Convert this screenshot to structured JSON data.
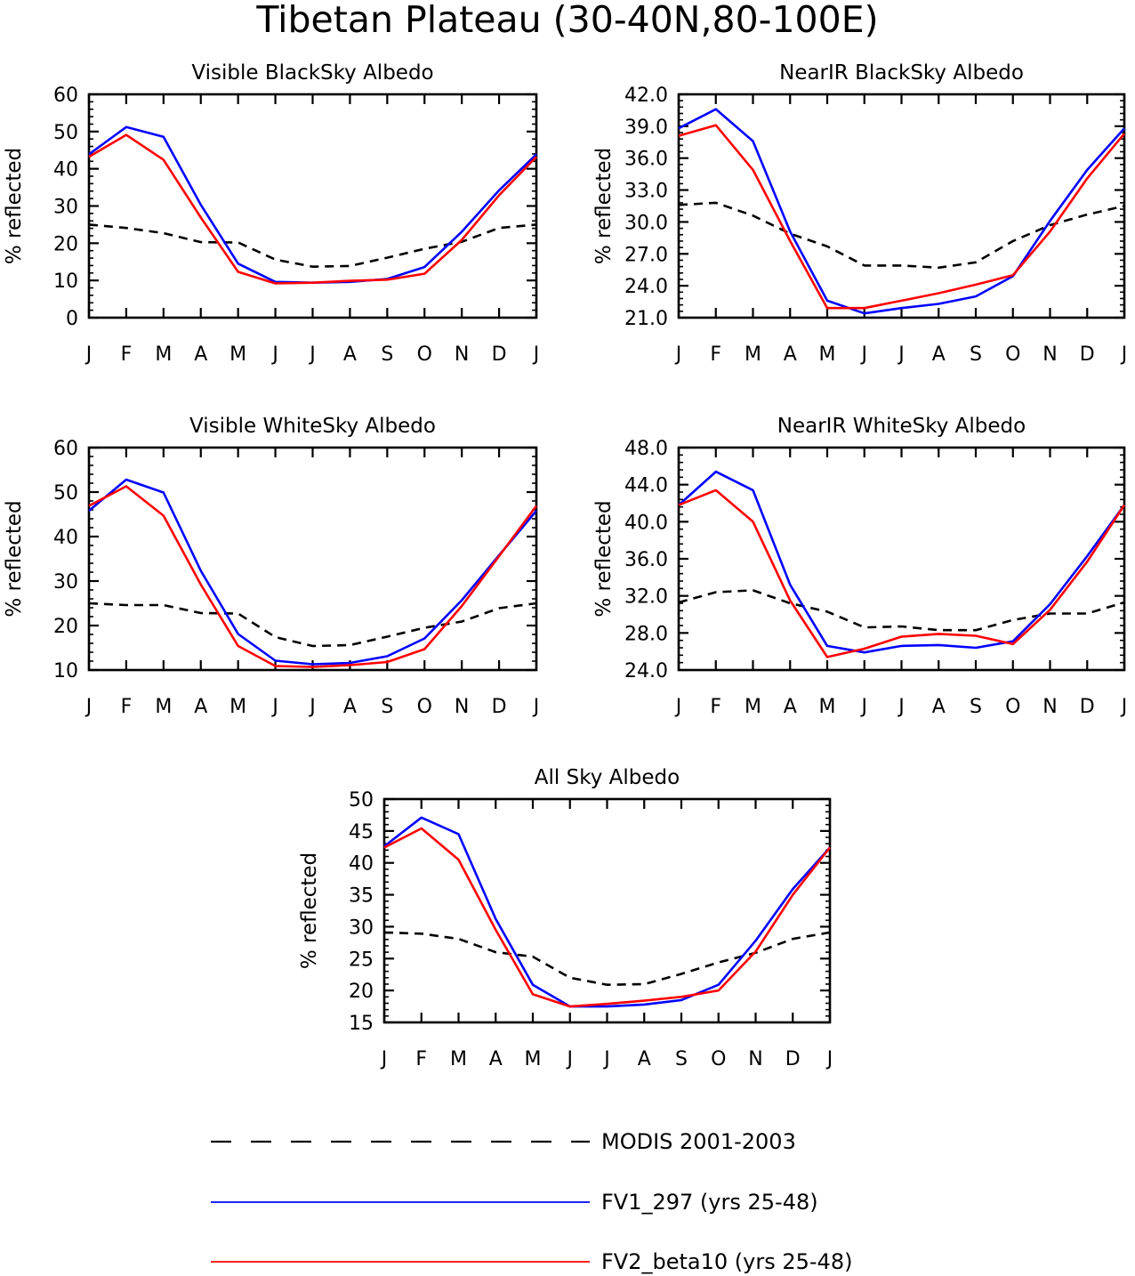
{
  "figure_title": "Tibetan Plateau (30-40N,80-100E)",
  "months": [
    "J",
    "F",
    "M",
    "A",
    "M",
    "J",
    "J",
    "A",
    "S",
    "O",
    "N",
    "D",
    "J"
  ],
  "series_colors": {
    "MODIS": "#000000",
    "FV1": "#0000ff",
    "FV2": "#ff0000"
  },
  "legend": [
    {
      "name": "MODIS 2001-2003",
      "color": "#000000",
      "style": "dashed"
    },
    {
      "name": "FV1_297 (yrs 25-48)",
      "color": "#0000ff",
      "style": "solid"
    },
    {
      "name": "FV2_beta10 (yrs 25-48)",
      "color": "#ff0000",
      "style": "solid"
    }
  ],
  "chart_data": [
    {
      "type": "line",
      "title": "Visible BlackSky Albedo",
      "ylabel": "% reflected",
      "categories": [
        "J",
        "F",
        "M",
        "A",
        "M",
        "J",
        "J",
        "A",
        "S",
        "O",
        "N",
        "D",
        "J"
      ],
      "ylim": [
        0,
        60
      ],
      "yticks": [
        "0",
        "10",
        "20",
        "30",
        "40",
        "50",
        "60"
      ],
      "series": [
        {
          "name": "MODIS 2001-2003",
          "values": [
            25,
            24.1,
            22.7,
            20.3,
            20.2,
            15.6,
            13.7,
            13.9,
            16.1,
            18.5,
            20.4,
            24.1,
            25
          ]
        },
        {
          "name": "FV1_297 (yrs 25-48)",
          "values": [
            43.9,
            51.2,
            48.6,
            30.3,
            14.5,
            9.6,
            9.4,
            9.6,
            10.4,
            13.6,
            23.1,
            34.2,
            43.9
          ]
        },
        {
          "name": "FV2_beta10 (yrs 25-48)",
          "values": [
            43.2,
            49.1,
            42.4,
            26.9,
            12.3,
            9.2,
            9.4,
            9.9,
            10.2,
            11.8,
            20.9,
            32.9,
            43.2
          ]
        }
      ]
    },
    {
      "type": "line",
      "title": "NearIR BlackSky Albedo",
      "ylabel": "% reflected",
      "categories": [
        "J",
        "F",
        "M",
        "A",
        "M",
        "J",
        "J",
        "A",
        "S",
        "O",
        "N",
        "D",
        "J"
      ],
      "ylim": [
        21,
        42
      ],
      "yticks": [
        "21.0",
        "24.0",
        "27.0",
        "30.0",
        "33.0",
        "36.0",
        "39.0",
        "42.0"
      ],
      "series": [
        {
          "name": "MODIS 2001-2003",
          "values": [
            31.6,
            31.8,
            30.6,
            28.9,
            27.7,
            25.9,
            25.9,
            25.7,
            26.2,
            28.2,
            29.7,
            30.7,
            31.5
          ]
        },
        {
          "name": "FV1_297 (yrs 25-48)",
          "values": [
            38.8,
            40.6,
            37.6,
            29.1,
            22.6,
            21.4,
            21.9,
            22.3,
            23.0,
            24.9,
            30.1,
            34.9,
            38.8
          ]
        },
        {
          "name": "FV2_beta10 (yrs 25-48)",
          "values": [
            38.1,
            39.1,
            34.9,
            28.2,
            21.9,
            21.9,
            22.6,
            23.3,
            24.1,
            25.0,
            29.1,
            34.1,
            38.3
          ]
        }
      ]
    },
    {
      "type": "line",
      "title": "Visible WhiteSky Albedo",
      "ylabel": "% reflected",
      "categories": [
        "J",
        "F",
        "M",
        "A",
        "M",
        "J",
        "J",
        "A",
        "S",
        "O",
        "N",
        "D",
        "J"
      ],
      "ylim": [
        10,
        60
      ],
      "yticks": [
        "10",
        "20",
        "30",
        "40",
        "50",
        "60"
      ],
      "series": [
        {
          "name": "MODIS 2001-2003",
          "values": [
            25,
            24.6,
            24.6,
            22.8,
            22.7,
            17.4,
            15.4,
            15.6,
            17.5,
            19.5,
            20.9,
            23.9,
            25
          ]
        },
        {
          "name": "FV1_297 (yrs 25-48)",
          "values": [
            45.8,
            52.8,
            49.9,
            32.3,
            18.1,
            12.1,
            11.3,
            11.6,
            13.1,
            17.1,
            25.7,
            35.8,
            45.8
          ]
        },
        {
          "name": "FV2_beta10 (yrs 25-48)",
          "values": [
            46.9,
            51.3,
            44.7,
            29.2,
            15.4,
            10.9,
            10.7,
            11.1,
            11.8,
            14.7,
            24.4,
            35.6,
            46.9
          ]
        }
      ]
    },
    {
      "type": "line",
      "title": "NearIR WhiteSky Albedo",
      "ylabel": "% reflected",
      "categories": [
        "J",
        "F",
        "M",
        "A",
        "M",
        "J",
        "J",
        "A",
        "S",
        "O",
        "N",
        "D",
        "J"
      ],
      "ylim": [
        24,
        48
      ],
      "yticks": [
        "24.0",
        "28.0",
        "32.0",
        "36.0",
        "40.0",
        "44.0",
        "48.0"
      ],
      "series": [
        {
          "name": "MODIS 2001-2003",
          "values": [
            31.3,
            32.4,
            32.6,
            31.2,
            30.3,
            28.6,
            28.7,
            28.3,
            28.3,
            29.4,
            30.1,
            30.1,
            31.3
          ]
        },
        {
          "name": "FV1_297 (yrs 25-48)",
          "values": [
            41.8,
            45.4,
            43.4,
            33.2,
            26.6,
            25.9,
            26.6,
            26.7,
            26.4,
            27.1,
            31.1,
            36.3,
            41.8
          ]
        },
        {
          "name": "FV2_beta10 (yrs 25-48)",
          "values": [
            41.8,
            43.4,
            40.0,
            31.5,
            25.4,
            26.3,
            27.6,
            27.9,
            27.7,
            26.8,
            30.5,
            35.7,
            41.8
          ]
        }
      ]
    },
    {
      "type": "line",
      "title": "All Sky Albedo",
      "ylabel": "% reflected",
      "categories": [
        "J",
        "F",
        "M",
        "A",
        "M",
        "J",
        "J",
        "A",
        "S",
        "O",
        "N",
        "D",
        "J"
      ],
      "ylim": [
        15,
        50
      ],
      "yticks": [
        "15",
        "20",
        "25",
        "30",
        "35",
        "40",
        "45",
        "50"
      ],
      "series": [
        {
          "name": "MODIS 2001-2003",
          "values": [
            29.1,
            28.9,
            28.1,
            26.0,
            25.3,
            22.0,
            20.9,
            21.0,
            22.6,
            24.4,
            25.9,
            28.1,
            29.1
          ]
        },
        {
          "name": "FV1_297 (yrs 25-48)",
          "values": [
            42.6,
            47.1,
            44.5,
            31.2,
            20.9,
            17.5,
            17.5,
            17.8,
            18.5,
            20.9,
            27.8,
            35.9,
            42.4
          ]
        },
        {
          "name": "FV2_beta10 (yrs 25-48)",
          "values": [
            42.4,
            45.4,
            40.5,
            29.5,
            19.4,
            17.5,
            17.9,
            18.4,
            19.0,
            20.0,
            26.1,
            35.0,
            42.4
          ]
        }
      ]
    }
  ]
}
